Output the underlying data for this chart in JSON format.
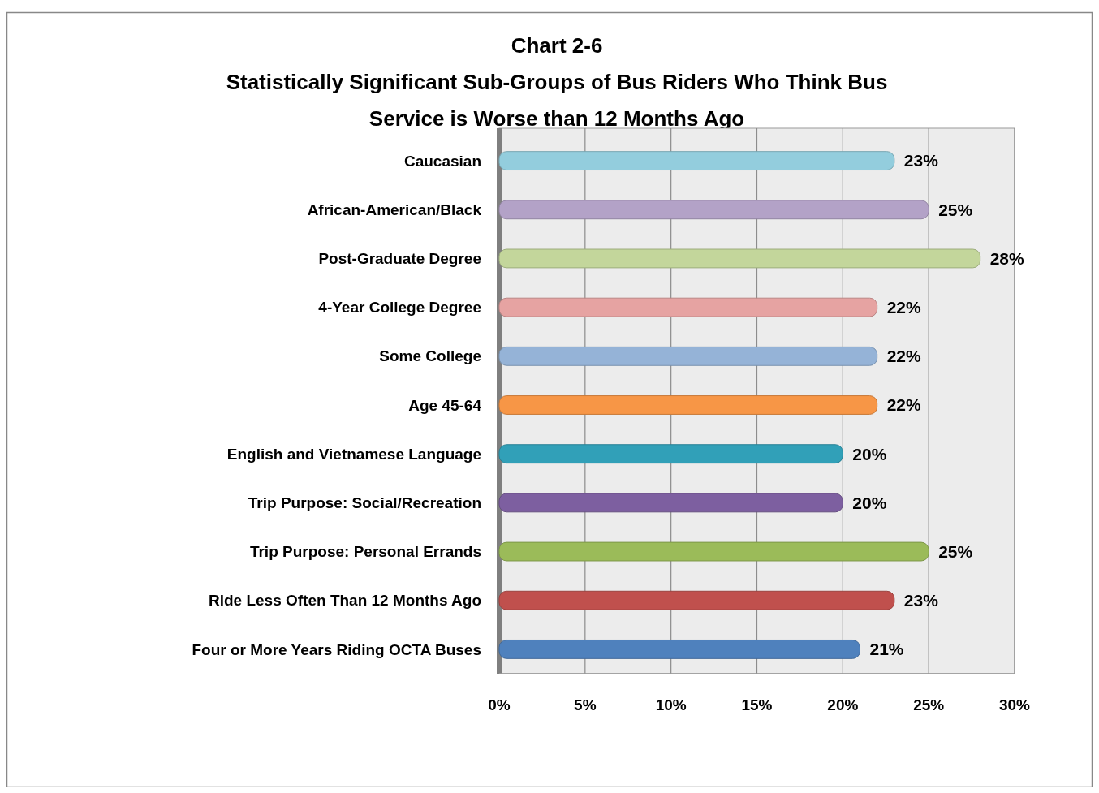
{
  "chart_data": {
    "type": "bar",
    "orientation": "horizontal",
    "title": "Chart 2-6\nStatistically Significant Sub-Groups of Bus Riders Who Think Bus\nService is Worse than 12 Months Ago",
    "categories": [
      "Caucasian",
      "African-American/Black",
      "Post-Graduate Degree",
      "4-Year College Degree",
      "Some College",
      "Age 45-64",
      "English and Vietnamese Language",
      "Trip Purpose: Social/Recreation",
      "Trip Purpose: Personal Errands",
      "Ride Less Often Than 12 Months Ago",
      "Four or More Years Riding OCTA Buses"
    ],
    "values": [
      23,
      25,
      28,
      22,
      22,
      22,
      20,
      20,
      25,
      23,
      21
    ],
    "value_labels": [
      "23%",
      "25%",
      "28%",
      "22%",
      "22%",
      "22%",
      "20%",
      "20%",
      "25%",
      "23%",
      "21%"
    ],
    "colors": [
      "#93cddd",
      "#b3a2c7",
      "#c3d69b",
      "#e6a3a2",
      "#95b3d7",
      "#f79646",
      "#31a0b8",
      "#7d5fa0",
      "#9bbb59",
      "#c0504d",
      "#4f81bd"
    ],
    "xlim": [
      0,
      30
    ],
    "xticks": [
      {
        "value": 0,
        "label": "0%"
      },
      {
        "value": 5,
        "label": "5%"
      },
      {
        "value": 10,
        "label": "10%"
      },
      {
        "value": 15,
        "label": "15%"
      },
      {
        "value": 20,
        "label": "20%"
      },
      {
        "value": 25,
        "label": "25%"
      },
      {
        "value": 30,
        "label": "30%"
      }
    ],
    "grid": "x"
  }
}
